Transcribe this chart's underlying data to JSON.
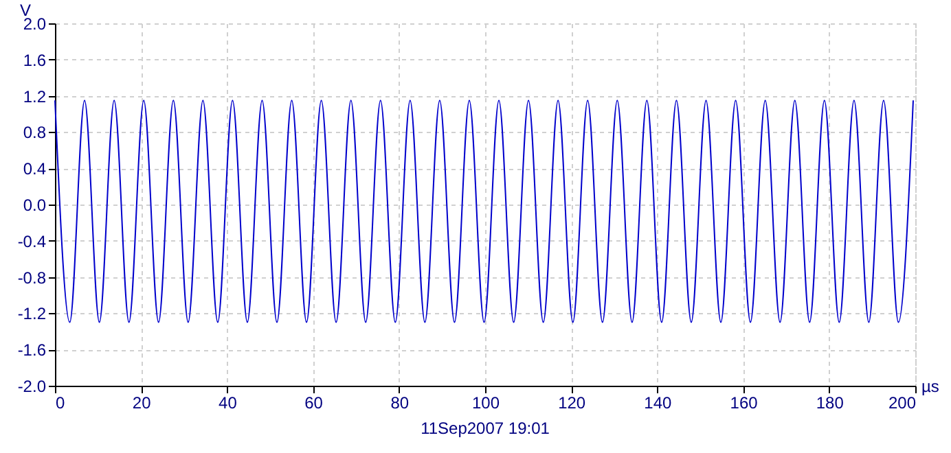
{
  "chart_data": {
    "type": "line",
    "xlabel": "µs",
    "ylabel": "V",
    "annotations": [
      "11Sep2007  19:01"
    ],
    "x": [
      0,
      3.44,
      6.88,
      10.32,
      13.76,
      17.2,
      20.64,
      24.08,
      27.52,
      30.96,
      34.4,
      37.84,
      41.28,
      44.72,
      48.16,
      51.6,
      55.04,
      58.48,
      61.92,
      65.36,
      68.8,
      72.24,
      75.68,
      79.12,
      82.56,
      86,
      89.44,
      92.88,
      96.32,
      99.76,
      103.2,
      106.64,
      110.08,
      113.52,
      116.96,
      120.4,
      123.84,
      127.28,
      130.72,
      134.16,
      137.6,
      141.04,
      144.48,
      147.92,
      151.36,
      154.8,
      158.24,
      161.68,
      165.12,
      168.56,
      172,
      175.44,
      178.88,
      182.32,
      185.76,
      189.2,
      192.64,
      196.08,
      199.52
    ],
    "series": [
      {
        "color": "#0000cc",
        "values": [
          1.15,
          -1.3,
          1.15,
          -1.3,
          1.15,
          -1.3,
          1.15,
          -1.3,
          1.15,
          -1.3,
          1.15,
          -1.3,
          1.15,
          -1.3,
          1.15,
          -1.3,
          1.15,
          -1.3,
          1.15,
          -1.3,
          1.15,
          -1.3,
          1.15,
          -1.3,
          1.15,
          -1.3,
          1.15,
          -1.3,
          1.15,
          -1.3,
          1.15,
          -1.3,
          1.15,
          -1.3,
          1.15,
          -1.3,
          1.15,
          -1.3,
          1.15,
          -1.3,
          1.15,
          -1.3,
          1.15,
          -1.3,
          1.15,
          -1.3,
          1.15,
          -1.3,
          1.15,
          -1.3,
          1.15,
          -1.3,
          1.15,
          -1.3,
          1.15,
          -1.3,
          1.15,
          -1.3,
          1.15
        ]
      }
    ],
    "xlim": [
      0,
      200
    ],
    "ylim": [
      -2,
      2
    ],
    "xticks": [
      0,
      20,
      40,
      60,
      80,
      100,
      120,
      140,
      160,
      180,
      200
    ],
    "yticks": [
      {
        "value": -2,
        "label": "-2.0"
      },
      {
        "value": -1.6,
        "label": "-1.6"
      },
      {
        "value": -1.2,
        "label": "-1.2"
      },
      {
        "value": -0.8,
        "label": "-0.8"
      },
      {
        "value": -0.4,
        "label": "-0.4"
      },
      {
        "value": 0,
        "label": "0.0"
      },
      {
        "value": 0.4,
        "label": "0.4"
      },
      {
        "value": 0.8,
        "label": "0.8"
      },
      {
        "value": 1.2,
        "label": "1.2"
      },
      {
        "value": 1.6,
        "label": "1.6"
      },
      {
        "value": 2,
        "label": "2.0"
      }
    ],
    "grid": true,
    "line_style": "solid"
  }
}
